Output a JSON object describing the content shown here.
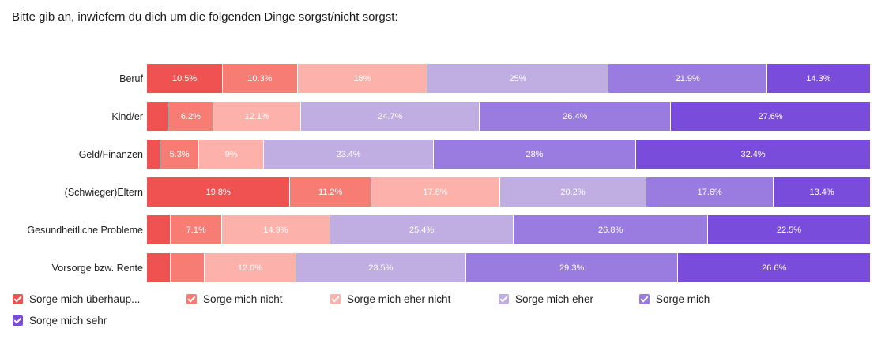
{
  "chart_data": {
    "type": "stacked_bar_100",
    "title": "Bitte gib an, inwiefern du dich um die folgenden Dinge sorgst/nicht sorgst:",
    "categories": [
      "Beruf",
      "Kind/er",
      "Geld/Finanzen",
      "(Schwieger)Eltern",
      "Gesundheitliche Probleme",
      "Vorsorge bzw. Rente"
    ],
    "series": [
      {
        "name": "Sorge mich überhaup...",
        "color": "#f05252",
        "values": [
          10.5,
          3,
          1.9,
          19.8,
          3.3,
          3.3
        ],
        "value_labels": [
          "10.5%",
          null,
          null,
          "19.8%",
          null,
          null
        ]
      },
      {
        "name": "Sorge mich nicht",
        "color": "#f67c74",
        "values": [
          10.3,
          6.2,
          5.3,
          11.2,
          7.1,
          4.7
        ],
        "value_labels": [
          "10.3%",
          "6.2%",
          "5.3%",
          "11.2%",
          "7.1%",
          null
        ]
      },
      {
        "name": "Sorge mich eher nicht",
        "color": "#fcb1aa",
        "values": [
          18,
          12.1,
          9,
          17.8,
          14.9,
          12.6
        ],
        "value_labels": [
          "18%",
          "12.1%",
          "9%",
          "17.8%",
          "14.9%",
          "12.6%"
        ]
      },
      {
        "name": "Sorge mich eher",
        "color": "#c0ade2",
        "values": [
          25,
          24.7,
          23.4,
          20.2,
          25.4,
          23.5
        ],
        "value_labels": [
          "25%",
          "24.7%",
          "23.4%",
          "20.2%",
          "25.4%",
          "23.5%"
        ]
      },
      {
        "name": "Sorge mich",
        "color": "#9a7ce1",
        "values": [
          21.9,
          26.4,
          28,
          17.6,
          26.8,
          29.3
        ],
        "value_labels": [
          "21.9%",
          "26.4%",
          "28%",
          "17.6%",
          "26.8%",
          "29.3%"
        ]
      },
      {
        "name": "Sorge mich sehr",
        "color": "#7a4cdc",
        "values": [
          14.3,
          27.6,
          32.4,
          13.4,
          22.5,
          26.6
        ],
        "value_labels": [
          "14.3%",
          "27.6%",
          "32.4%",
          "13.4%",
          "22.5%",
          "26.6%"
        ]
      }
    ]
  }
}
